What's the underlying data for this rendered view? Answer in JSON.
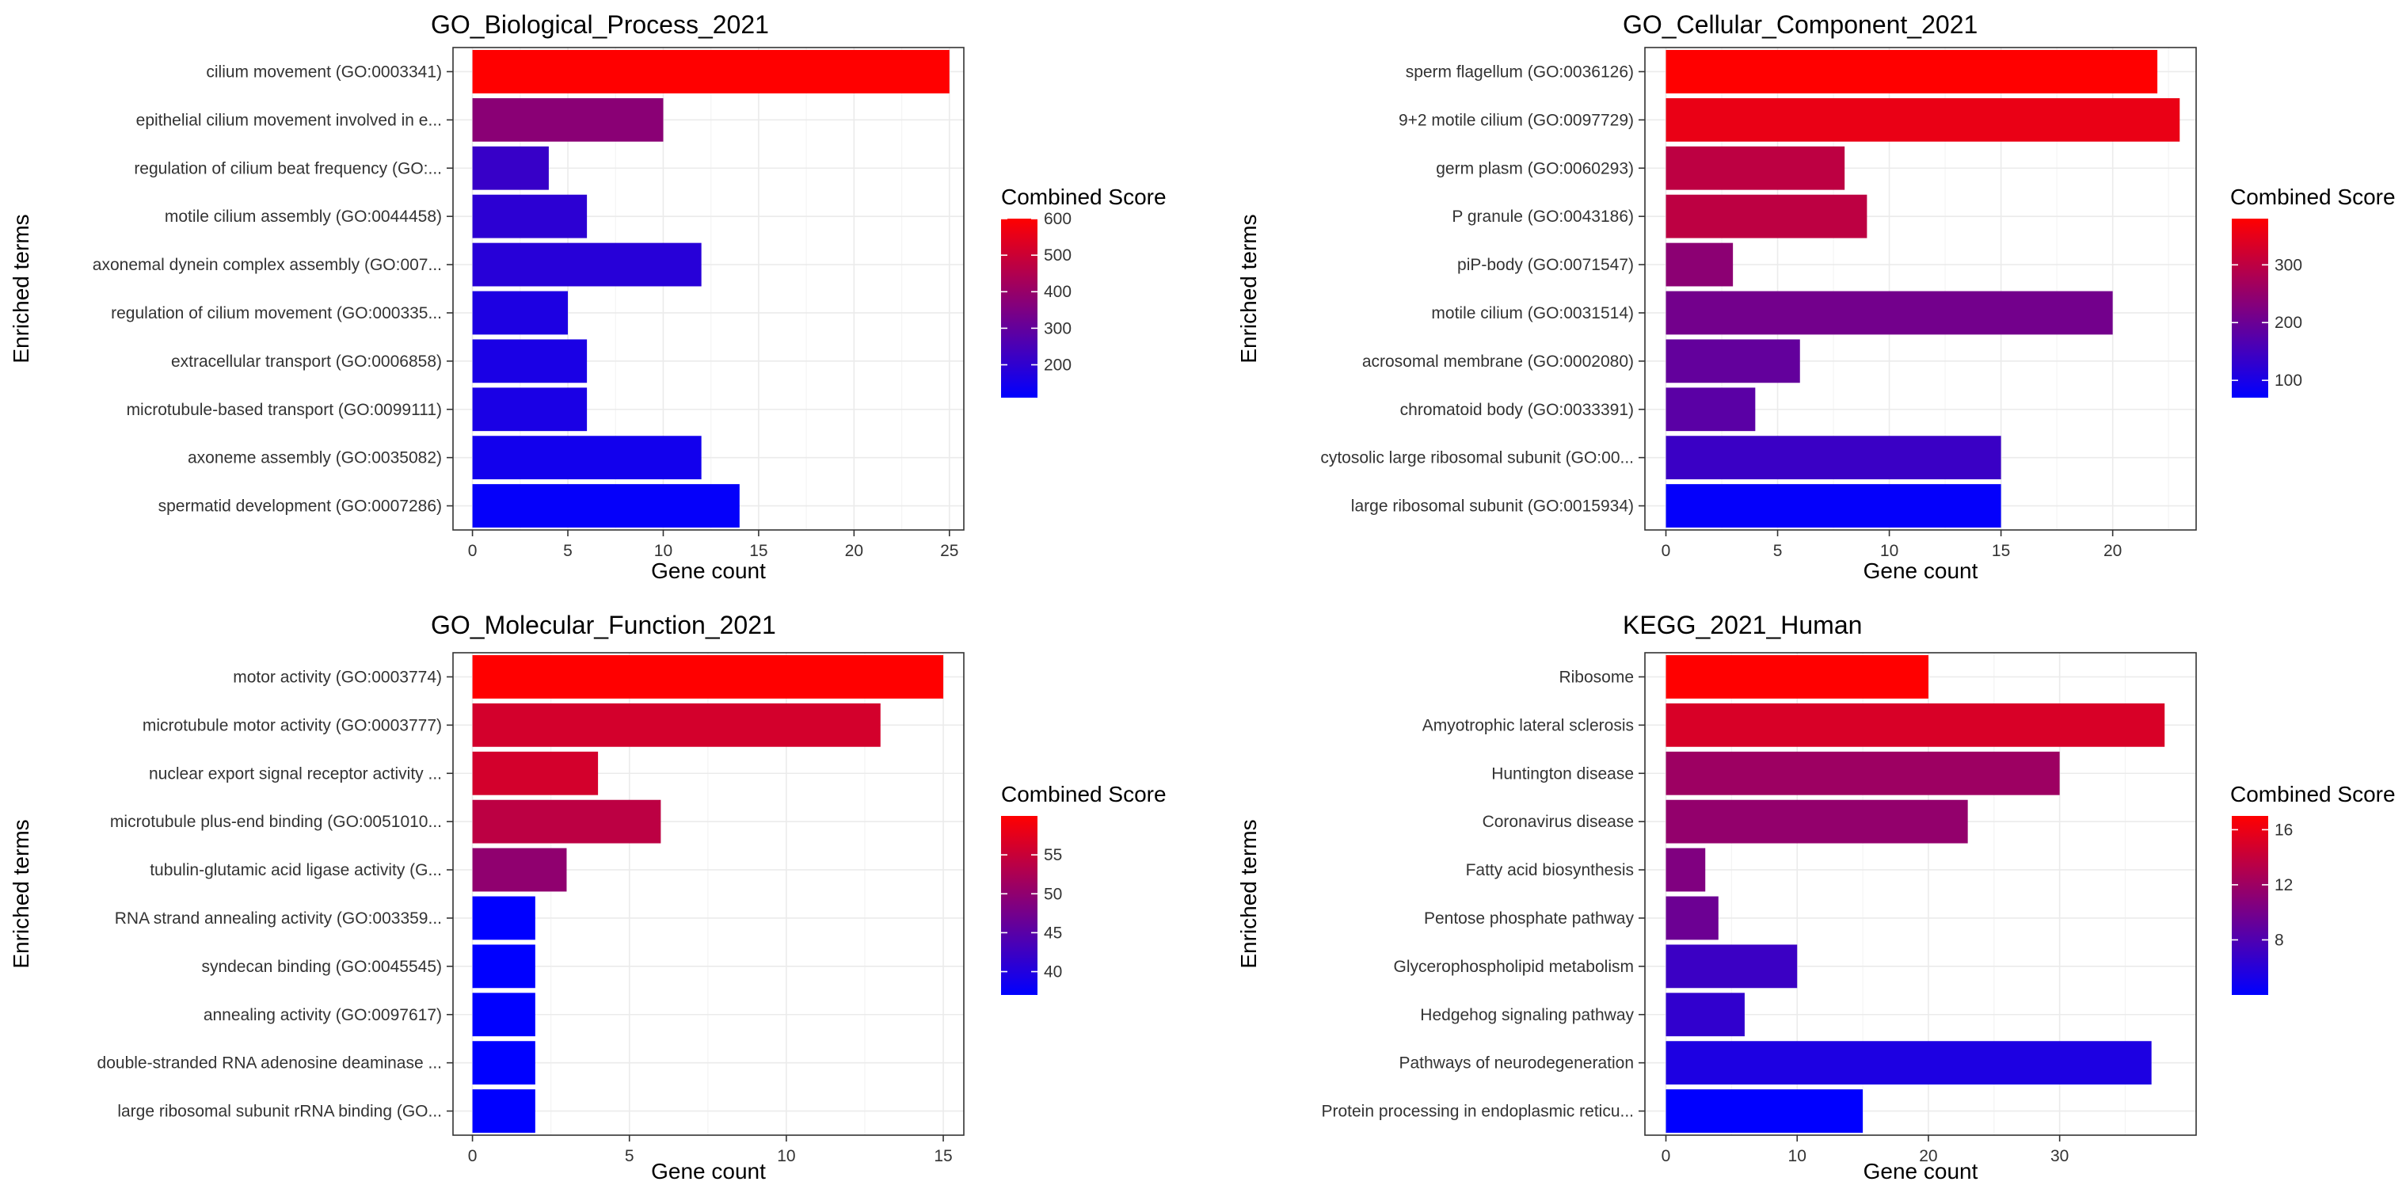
{
  "chart_data": [
    {
      "type": "bar",
      "orientation": "horizontal",
      "title": "GO_Biological_Process_2021",
      "xlabel": "Gene count",
      "ylabel": "Enriched terms",
      "xlim": [
        0,
        25.5
      ],
      "xticks": [
        0,
        5,
        10,
        15,
        20,
        25
      ],
      "grid": true,
      "legend_title": "Combined Score",
      "legend_position": "right",
      "color_low": "#0000ff",
      "color_high": "#ff0000",
      "color_range": [
        110,
        600
      ],
      "legend_ticks": [
        200,
        300,
        400,
        500,
        600
      ],
      "categories": [
        "cilium movement (GO:0003341)",
        "epithelial cilium movement involved in e...",
        "regulation of cilium beat frequency (GO:...",
        "motile cilium assembly (GO:0044458)",
        "axonemal dynein complex assembly (GO:007...",
        "regulation of cilium movement (GO:000335...",
        "extracellular transport (GO:0006858)",
        "microtubule-based transport (GO:0099111)",
        "axoneme assembly (GO:0035082)",
        "spermatid development (GO:0007286)"
      ],
      "values": [
        25,
        10,
        4,
        6,
        12,
        5,
        6,
        6,
        12,
        14
      ],
      "scores": [
        600,
        375,
        215,
        195,
        185,
        165,
        160,
        160,
        145,
        120
      ]
    },
    {
      "type": "bar",
      "orientation": "horizontal",
      "title": "GO_Cellular_Component_2021",
      "xlabel": "Gene count",
      "ylabel": "Enriched terms",
      "xlim": [
        0,
        23.5
      ],
      "xticks": [
        0,
        5,
        10,
        15,
        20
      ],
      "grid": true,
      "legend_title": "Combined Score",
      "legend_position": "right",
      "color_low": "#0000ff",
      "color_high": "#ff0000",
      "color_range": [
        70,
        380
      ],
      "legend_ticks": [
        100,
        200,
        300
      ],
      "categories": [
        "sperm flagellum (GO:0036126)",
        "9+2 motile cilium (GO:0097729)",
        "germ plasm (GO:0060293)",
        "P granule (GO:0043186)",
        "piP-body (GO:0071547)",
        "motile cilium (GO:0031514)",
        "acrosomal membrane (GO:0002080)",
        "chromatoid body (GO:0033391)",
        "cytosolic large ribosomal subunit (GO:00...",
        "large ribosomal subunit (GO:0015934)"
      ],
      "values": [
        22,
        23,
        8,
        9,
        3,
        20,
        6,
        4,
        15,
        15
      ],
      "scores": [
        380,
        355,
        300,
        300,
        240,
        210,
        190,
        180,
        140,
        75
      ]
    },
    {
      "type": "bar",
      "orientation": "horizontal",
      "title": "GO_Molecular_Function_2021",
      "xlabel": "Gene count",
      "ylabel": "Enriched terms",
      "xlim": [
        0,
        15.5
      ],
      "xticks": [
        0,
        5,
        10,
        15
      ],
      "grid": true,
      "legend_title": "Combined Score",
      "legend_position": "right",
      "color_low": "#0000ff",
      "color_high": "#ff0000",
      "color_range": [
        37,
        60
      ],
      "legend_ticks": [
        40,
        45,
        50,
        55
      ],
      "categories": [
        "motor activity (GO:0003774)",
        "microtubule motor activity (GO:0003777)",
        "nuclear export signal receptor activity ...",
        "microtubule plus-end binding (GO:0051010...",
        "tubulin-glutamic acid ligase activity (G...",
        "RNA strand annealing activity (GO:003359...",
        "syndecan binding (GO:0045545)",
        "annealing activity (GO:0097617)",
        "double-stranded RNA adenosine deaminase ...",
        "large ribosomal subunit rRNA binding (GO..."
      ],
      "values": [
        15,
        13,
        4,
        6,
        3,
        2,
        2,
        2,
        2,
        2
      ],
      "scores": [
        60,
        56,
        56,
        54,
        50,
        37,
        37,
        37,
        37,
        37
      ]
    },
    {
      "type": "bar",
      "orientation": "horizontal",
      "title": "KEGG_2021_Human",
      "xlabel": "Gene count",
      "ylabel": "Enriched terms",
      "xlim": [
        0,
        40
      ],
      "xticks": [
        0,
        10,
        20,
        30
      ],
      "grid": true,
      "legend_title": "Combined Score",
      "legend_position": "right",
      "color_low": "#0000ff",
      "color_high": "#ff0000",
      "color_range": [
        4,
        17
      ],
      "legend_ticks": [
        8,
        12,
        16
      ],
      "categories": [
        "Ribosome",
        "Amyotrophic lateral sclerosis",
        "Huntington disease",
        "Coronavirus disease",
        "Fatty acid biosynthesis",
        "Pentose phosphate pathway",
        "Glycerophospholipid metabolism",
        "Hedgehog signaling pathway",
        "Pathways of neurodegeneration",
        "Protein processing in endoplasmic reticu..."
      ],
      "values": [
        20,
        38,
        30,
        23,
        3,
        4,
        10,
        6,
        37,
        15
      ],
      "scores": [
        17,
        15,
        12,
        11.5,
        10.5,
        9.5,
        7,
        6.5,
        5.5,
        4
      ]
    }
  ]
}
